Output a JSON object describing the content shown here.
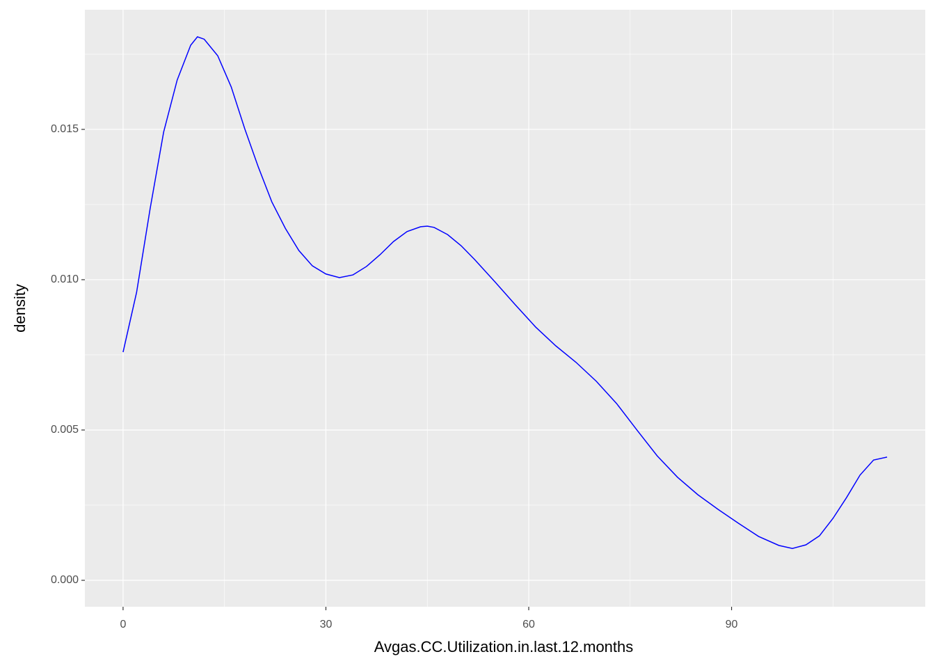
{
  "chart_data": {
    "type": "line",
    "x_label": "Avgas.CC.Utilization.in.last.12.months",
    "y_label": "density",
    "x": [
      0,
      2,
      4,
      6,
      8,
      10,
      11,
      12,
      14,
      16,
      18,
      20,
      22,
      24,
      26,
      28,
      30,
      32,
      34,
      36,
      38,
      40,
      42,
      44,
      45,
      46,
      48,
      50,
      52,
      55,
      58,
      61,
      64,
      67,
      70,
      73,
      76,
      79,
      82,
      85,
      88,
      91,
      94,
      97,
      99,
      101,
      103,
      105,
      107,
      109,
      111,
      113
    ],
    "series": [
      {
        "color": "#0000ff",
        "values": [
          0.00759,
          0.00958,
          0.01236,
          0.01491,
          0.01664,
          0.0178,
          0.01808,
          0.018,
          0.01745,
          0.01641,
          0.01502,
          0.01375,
          0.01259,
          0.01171,
          0.01097,
          0.01046,
          0.01019,
          0.01007,
          0.01016,
          0.01044,
          0.01083,
          0.01127,
          0.0116,
          0.01176,
          0.01178,
          0.01174,
          0.0115,
          0.01113,
          0.01067,
          0.00993,
          0.00917,
          0.00843,
          0.0078,
          0.00725,
          0.00662,
          0.00588,
          0.005,
          0.00414,
          0.00343,
          0.00285,
          0.00236,
          0.0019,
          0.00146,
          0.00116,
          0.00106,
          0.00118,
          0.00148,
          0.00206,
          0.00275,
          0.0035,
          0.004,
          0.0041
        ]
      }
    ],
    "xlim": [
      -5.65,
      118.65
    ],
    "ylim": [
      -0.00088,
      0.01898
    ],
    "xticks": [
      0,
      30,
      60,
      90
    ],
    "yticks": [
      {
        "value": 0,
        "label": "0.000"
      },
      {
        "value": 0.005,
        "label": "0.005"
      },
      {
        "value": 0.01,
        "label": "0.010"
      },
      {
        "value": 0.015,
        "label": "0.015"
      }
    ],
    "x_minor_grid": [
      15,
      45,
      75,
      105
    ],
    "y_minor_grid": [
      0.0025,
      0.0075,
      0.0125,
      0.0175
    ],
    "grid": true
  }
}
